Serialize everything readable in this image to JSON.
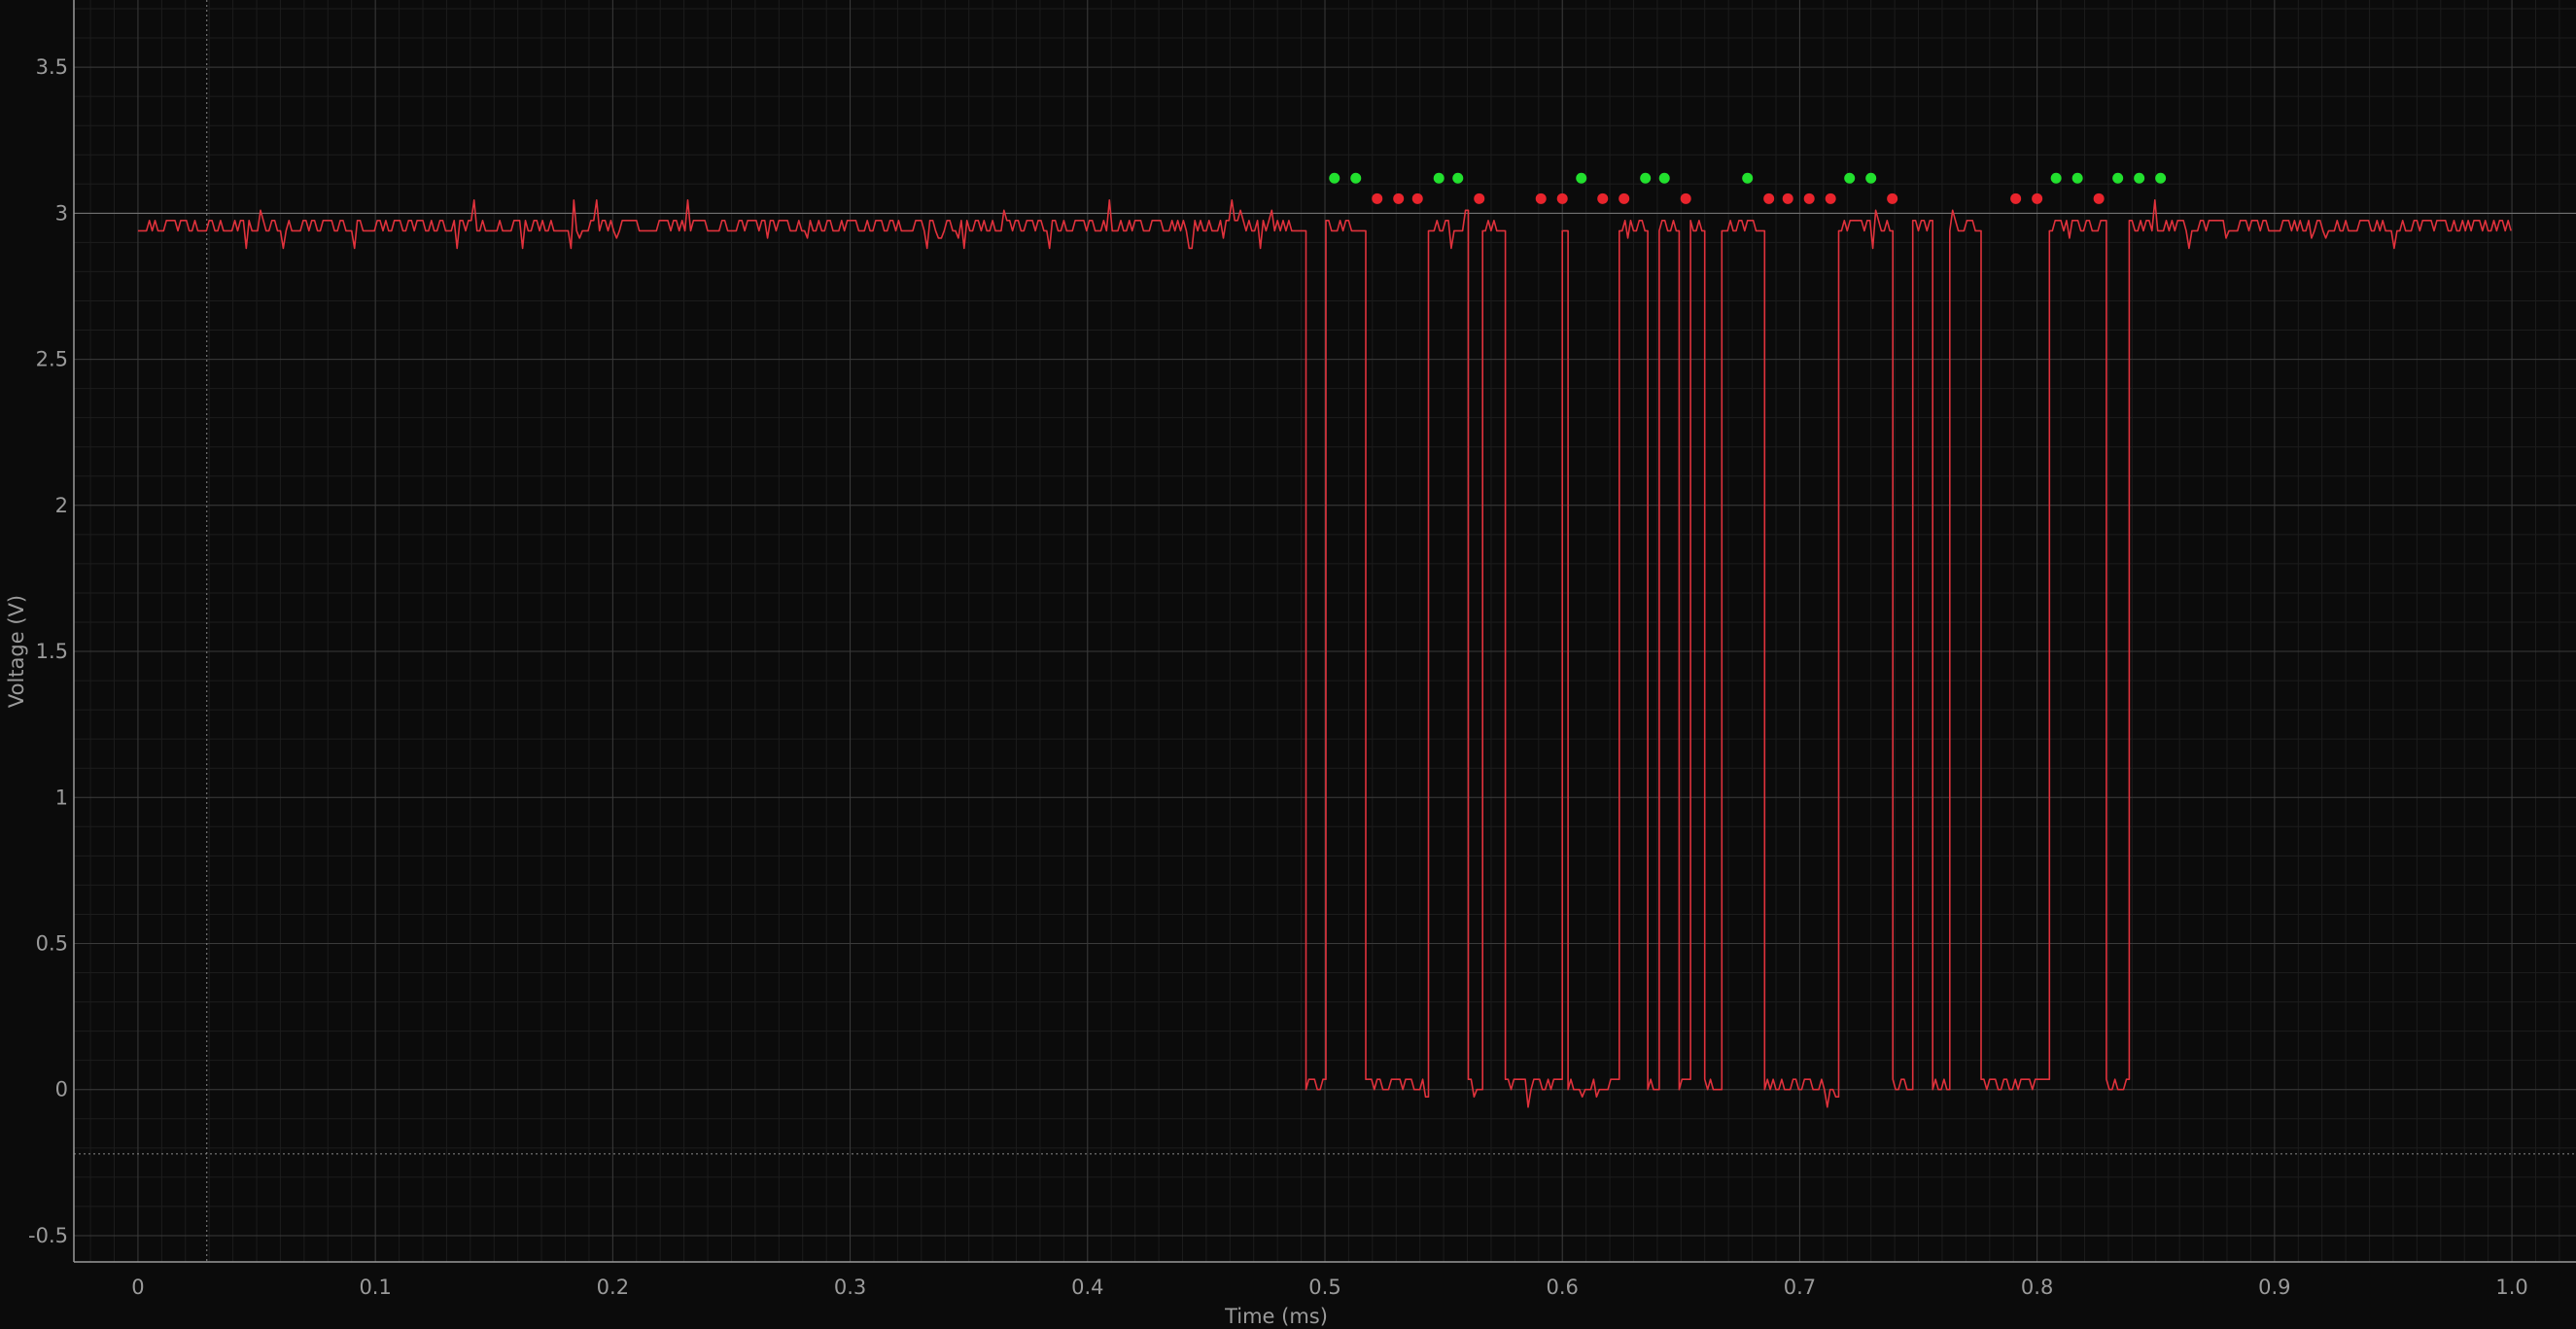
{
  "chart_data": {
    "type": "line",
    "xlabel": "Time (ms)",
    "ylabel": "Voltage (V)",
    "xlim": [
      -0.027,
      1.027
    ],
    "ylim": [
      -0.59,
      3.73
    ],
    "x_ticks": [
      0,
      0.1,
      0.2,
      0.3,
      0.4,
      0.5,
      0.6,
      0.7,
      0.8,
      0.9,
      1.0
    ],
    "x_tick_labels": [
      "0",
      "0.1",
      "0.2",
      "0.3",
      "0.4",
      "0.5",
      "0.6",
      "0.7",
      "0.8",
      "0.9",
      "1.0"
    ],
    "y_ticks": [
      -0.5,
      0,
      0.5,
      1,
      1.5,
      2,
      2.5,
      3,
      3.5
    ],
    "y_tick_labels": [
      "-0.5",
      "0",
      "0.5",
      "1",
      "1.5",
      "2",
      "2.5",
      "3",
      "3.5"
    ],
    "grid": true,
    "threshold_level": 3.0,
    "trigger_level": -0.22,
    "cursor_time": 0.029,
    "series": [
      {
        "color": "#e0323c",
        "high_level": 2.94,
        "low_level": 0.0,
        "idle_high_from": 0.0,
        "idle_high_to": 0.49,
        "low_intervals": [
          [
            0.491,
            0.5
          ],
          [
            0.516,
            0.543
          ],
          [
            0.56,
            0.566
          ],
          [
            0.575,
            0.599
          ],
          [
            0.602,
            0.623
          ],
          [
            0.635,
            0.64
          ],
          [
            0.648,
            0.653
          ],
          [
            0.659,
            0.667
          ],
          [
            0.685,
            0.716
          ],
          [
            0.739,
            0.747
          ],
          [
            0.755,
            0.763
          ],
          [
            0.776,
            0.805
          ],
          [
            0.829,
            0.838
          ]
        ],
        "end_time": 1.0
      }
    ],
    "bit_markers": {
      "high_color": "#22e02e",
      "low_color": "#e8242c",
      "high_y": 3.12,
      "low_y": 3.05,
      "bits": [
        {
          "t": 0.504,
          "v": 1
        },
        {
          "t": 0.513,
          "v": 1
        },
        {
          "t": 0.522,
          "v": 0
        },
        {
          "t": 0.531,
          "v": 0
        },
        {
          "t": 0.539,
          "v": 0
        },
        {
          "t": 0.548,
          "v": 1
        },
        {
          "t": 0.556,
          "v": 1
        },
        {
          "t": 0.565,
          "v": 0
        },
        {
          "t": 0.591,
          "v": 0
        },
        {
          "t": 0.6,
          "v": 0
        },
        {
          "t": 0.608,
          "v": 1
        },
        {
          "t": 0.617,
          "v": 0
        },
        {
          "t": 0.626,
          "v": 0
        },
        {
          "t": 0.635,
          "v": 1
        },
        {
          "t": 0.643,
          "v": 1
        },
        {
          "t": 0.652,
          "v": 0
        },
        {
          "t": 0.678,
          "v": 1
        },
        {
          "t": 0.687,
          "v": 0
        },
        {
          "t": 0.695,
          "v": 0
        },
        {
          "t": 0.704,
          "v": 0
        },
        {
          "t": 0.713,
          "v": 0
        },
        {
          "t": 0.721,
          "v": 1
        },
        {
          "t": 0.73,
          "v": 1
        },
        {
          "t": 0.739,
          "v": 0
        },
        {
          "t": 0.791,
          "v": 0
        },
        {
          "t": 0.8,
          "v": 0
        },
        {
          "t": 0.808,
          "v": 1
        },
        {
          "t": 0.817,
          "v": 1
        },
        {
          "t": 0.826,
          "v": 0
        },
        {
          "t": 0.834,
          "v": 1
        },
        {
          "t": 0.843,
          "v": 1
        },
        {
          "t": 0.852,
          "v": 1
        }
      ]
    }
  }
}
